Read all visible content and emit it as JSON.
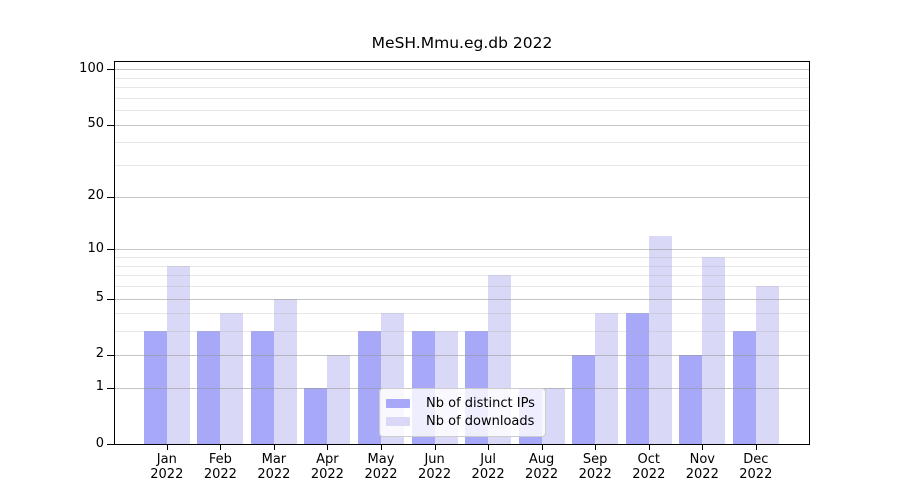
{
  "figure": {
    "title": "MeSH.Mmu.eg.db 2022"
  },
  "chart_data": {
    "type": "bar",
    "title": "MeSH.Mmu.eg.db 2022",
    "categories": [
      "Jan 2022",
      "Feb 2022",
      "Mar 2022",
      "Apr 2022",
      "May 2022",
      "Jun 2022",
      "Jul 2022",
      "Aug 2022",
      "Sep 2022",
      "Oct 2022",
      "Nov 2022",
      "Dec 2022"
    ],
    "series": [
      {
        "name": "Nb of distinct IPs",
        "color": "#a8a8f8",
        "values": [
          3,
          3,
          3,
          1,
          3,
          3,
          3,
          1,
          2,
          4,
          2,
          3
        ]
      },
      {
        "name": "Nb of downloads",
        "color": "#d9d9f7",
        "values": [
          8,
          4,
          5,
          2,
          4,
          3,
          7,
          1,
          4,
          12,
          9,
          6
        ]
      }
    ],
    "yscale": "log10(1+x)",
    "ylim": [
      0,
      110
    ],
    "ytick_labels": [
      "100",
      "50",
      "20",
      "10",
      "5",
      "2",
      "1",
      "0"
    ],
    "ytick_values": [
      100,
      50,
      20,
      10,
      5,
      2,
      1,
      0
    ],
    "major_grid_values": [
      1,
      2,
      5,
      10,
      20,
      50,
      100
    ],
    "minor_grid_values": [
      3,
      4,
      6,
      7,
      8,
      9,
      30,
      40,
      60,
      70,
      80,
      90
    ],
    "grid": true,
    "legend_position": "inside-bottom-center",
    "colors": {
      "axis": "#000000",
      "major_grid": "rgba(150,150,150,0.55)",
      "minor_grid": "rgba(175,175,175,0.30)",
      "background": "#ffffff"
    }
  }
}
